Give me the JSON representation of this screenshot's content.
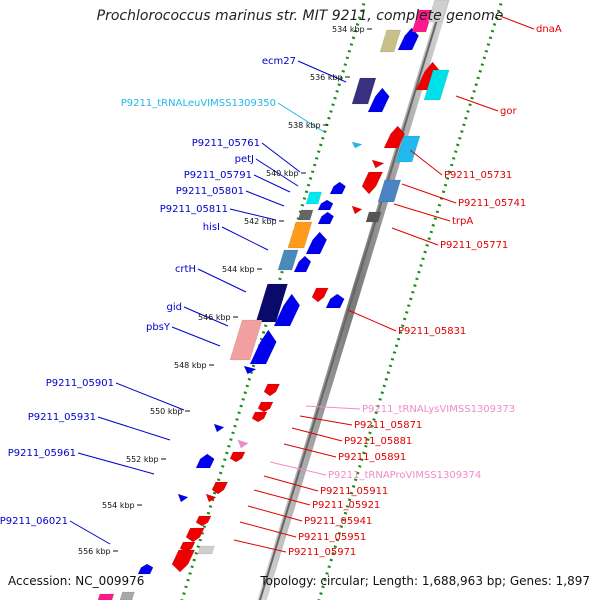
{
  "title": "Prochlorococcus marinus str. MIT 9211, complete genome",
  "accession": "Accession: NC_009976",
  "topology": "Topology: circular; Length: 1,688,963 bp; Genes: 1,897",
  "colors": {
    "plus_label": "#0000cc",
    "minus_label": "#e00000",
    "trna_plus": "#22b8e6",
    "trna_minus": "#f08cc8",
    "backbone": "#888888",
    "ruler": "#1a8a1a"
  },
  "ticks": [
    "534 kbp",
    "536 kbp",
    "538 kbp",
    "540 kbp",
    "542 kbp",
    "544 kbp",
    "546 kbp",
    "548 kbp",
    "550 kbp",
    "552 kbp",
    "554 kbp",
    "556 kbp"
  ],
  "left_labels": [
    "ecm27",
    "P9211_tRNALeuVIMSS1309350",
    "P9211_05761",
    "petJ",
    "P9211_05791",
    "P9211_05801",
    "P9211_05811",
    "hisI",
    "crtH",
    "gid",
    "pbsY",
    "P9211_05901",
    "P9211_05931",
    "P9211_05961",
    "P9211_06021"
  ],
  "right_labels": [
    "dnaA",
    "gor",
    "P9211_05731",
    "P9211_05741",
    "trpA",
    "P9211_05771",
    "P9211_05831",
    "P9211_tRNALysVIMSS1309373",
    "P9211_05871",
    "P9211_05881",
    "P9211_05891",
    "P9211_tRNAProVIMSS1309374",
    "P9211_05911",
    "P9211_05921",
    "P9211_05941",
    "P9211_05951",
    "P9211_05971"
  ]
}
